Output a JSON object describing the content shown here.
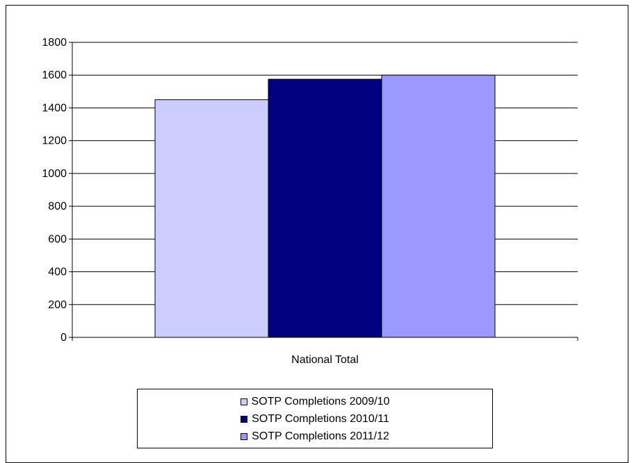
{
  "chart_data": {
    "type": "bar",
    "categories": [
      "National Total"
    ],
    "series": [
      {
        "name": "SOTP Completions 2009/10",
        "values": [
          1450
        ],
        "color": "#ccccff"
      },
      {
        "name": "SOTP Completions 2010/11",
        "values": [
          1575
        ],
        "color": "#000080"
      },
      {
        "name": "SOTP Completions 2011/12",
        "values": [
          1600
        ],
        "color": "#9999ff"
      }
    ],
    "ylim": [
      0,
      1800
    ],
    "yticks": [
      "0",
      "200",
      "400",
      "600",
      "800",
      "1000",
      "1200",
      "1400",
      "1600",
      "1800"
    ],
    "grid": true,
    "legend_position": "bottom",
    "title": "",
    "xlabel": "",
    "ylabel": ""
  }
}
